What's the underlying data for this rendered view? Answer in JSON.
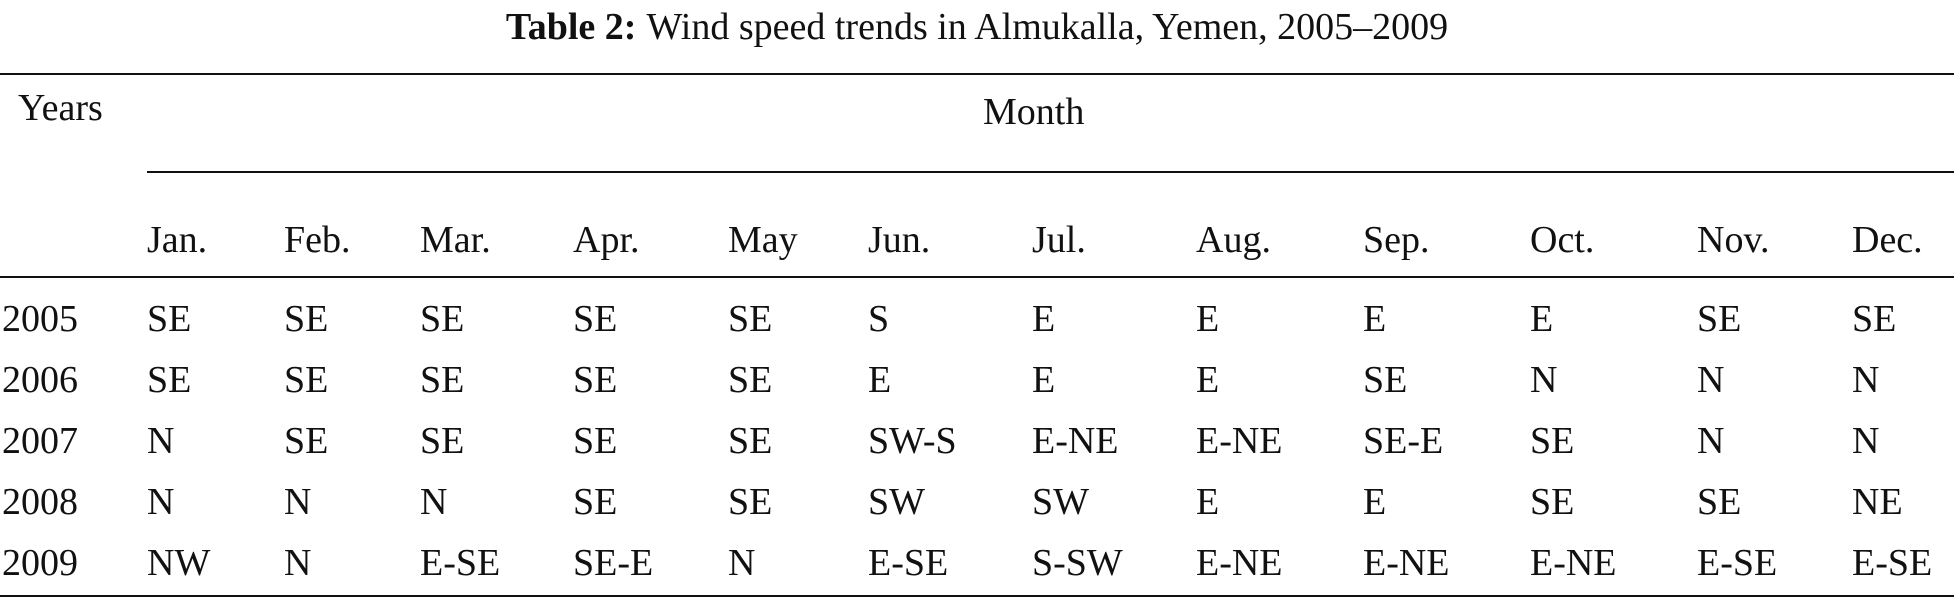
{
  "caption": {
    "label": "Table 2:",
    "text": "Wind speed trends in Almukalla, Yemen, 2005–2009"
  },
  "table": {
    "row_header": "Years",
    "group_header": "Month",
    "columns": [
      "Jan.",
      "Feb.",
      "Mar.",
      "Apr.",
      "May",
      "Jun.",
      "Jul.",
      "Aug.",
      "Sep.",
      "Oct.",
      "Nov.",
      "Dec."
    ],
    "rows": [
      {
        "year": "2005",
        "values": [
          "SE",
          "SE",
          "SE",
          "SE",
          "SE",
          "S",
          "E",
          "E",
          "E",
          "E",
          "SE",
          "SE"
        ]
      },
      {
        "year": "2006",
        "values": [
          "SE",
          "SE",
          "SE",
          "SE",
          "SE",
          "E",
          "E",
          "E",
          "SE",
          "N",
          "N",
          "N"
        ]
      },
      {
        "year": "2007",
        "values": [
          "N",
          "SE",
          "SE",
          "SE",
          "SE",
          "SW-S",
          "E-NE",
          "E-NE",
          "SE-E",
          "SE",
          "N",
          "N"
        ]
      },
      {
        "year": "2008",
        "values": [
          "N",
          "N",
          "N",
          "SE",
          "SE",
          "SW",
          "SW",
          "E",
          "E",
          "SE",
          "SE",
          "NE"
        ]
      },
      {
        "year": "2009",
        "values": [
          "NW",
          "N",
          "E-SE",
          "SE-E",
          "N",
          "E-SE",
          "S-SW",
          "E-NE",
          "E-NE",
          "E-NE",
          "E-SE",
          "E-SE"
        ]
      }
    ]
  }
}
